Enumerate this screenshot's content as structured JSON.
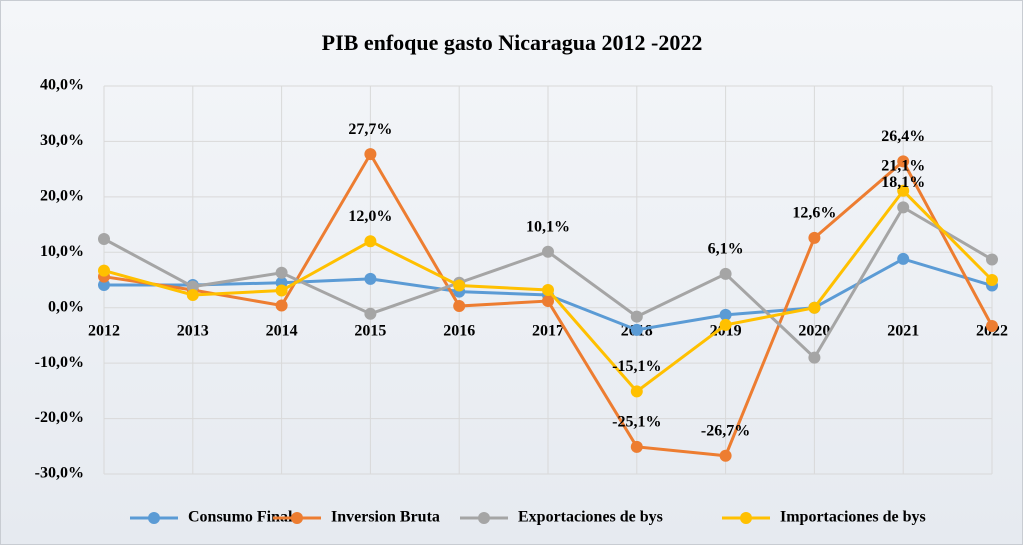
{
  "chart_data": {
    "type": "line",
    "title": "PIB enfoque gasto Nicaragua 2012 -2022",
    "categories": [
      "2012",
      "2013",
      "2014",
      "2015",
      "2016",
      "2017",
      "2018",
      "2019",
      "2020",
      "2021",
      "2022"
    ],
    "ylim": [
      -30,
      40
    ],
    "yticks": [
      {
        "value": -30,
        "label": "-30,0%"
      },
      {
        "value": -20,
        "label": "-20,0%"
      },
      {
        "value": -10,
        "label": "-10,0%"
      },
      {
        "value": 0,
        "label": "0,0%"
      },
      {
        "value": 10,
        "label": "10,0%"
      },
      {
        "value": 20,
        "label": "20,0%"
      },
      {
        "value": 30,
        "label": "30,0%"
      },
      {
        "value": 40,
        "label": "40,0%"
      }
    ],
    "grid": true,
    "legend": "bottom",
    "series": [
      {
        "name": "Consumo Final",
        "color": "#5b9bd5",
        "values": [
          4.1,
          4.1,
          4.5,
          5.2,
          2.9,
          2.3,
          -4.0,
          -1.3,
          0.0,
          8.8,
          4.0
        ]
      },
      {
        "name": "Inversion Bruta",
        "color": "#ed7d31",
        "values": [
          5.6,
          3.2,
          0.4,
          27.7,
          0.3,
          1.2,
          -25.1,
          -26.7,
          12.6,
          26.4,
          -3.3
        ],
        "value_labels": [
          null,
          null,
          null,
          "27,7%",
          null,
          null,
          "-25,1%",
          "-26,7%",
          "12,6%",
          "26,4%",
          null
        ]
      },
      {
        "name": "Exportaciones de bys",
        "color": "#a5a5a5",
        "values": [
          12.4,
          3.8,
          6.3,
          -1.1,
          4.5,
          10.1,
          -1.6,
          6.1,
          -9.0,
          18.1,
          8.7
        ],
        "value_labels": [
          null,
          null,
          null,
          null,
          null,
          "10,1%",
          null,
          "6,1%",
          null,
          "18,1%",
          null
        ]
      },
      {
        "name": "Importaciones de bys",
        "color": "#ffc000",
        "values": [
          6.7,
          2.3,
          3.1,
          12.0,
          4.0,
          3.2,
          -15.1,
          -3.1,
          0.0,
          21.1,
          5.0
        ],
        "value_labels": [
          null,
          null,
          null,
          "12,0%",
          null,
          null,
          "-15,1%",
          null,
          null,
          "21,1%",
          null
        ]
      }
    ]
  }
}
